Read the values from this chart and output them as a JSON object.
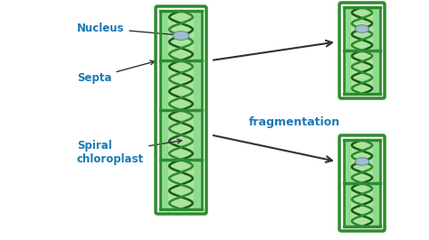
{
  "fig_bg": "#ffffff",
  "cell_outer_color": "#2e8b2e",
  "cell_inner_color": "#8fdb8f",
  "cell_light_inner": "#c5eeaa",
  "spiral_color": "#1a5a1a",
  "spiral_color2": "#2d8a2d",
  "nucleus_color": "#a0bece",
  "label_color": "#1a7ab5",
  "arrow_color": "#333333",
  "frag_label": "fragmentation",
  "label_nucleus": "Nucleus",
  "label_septa": "Septa",
  "label_spiral": "Spiral\nchloroplast"
}
